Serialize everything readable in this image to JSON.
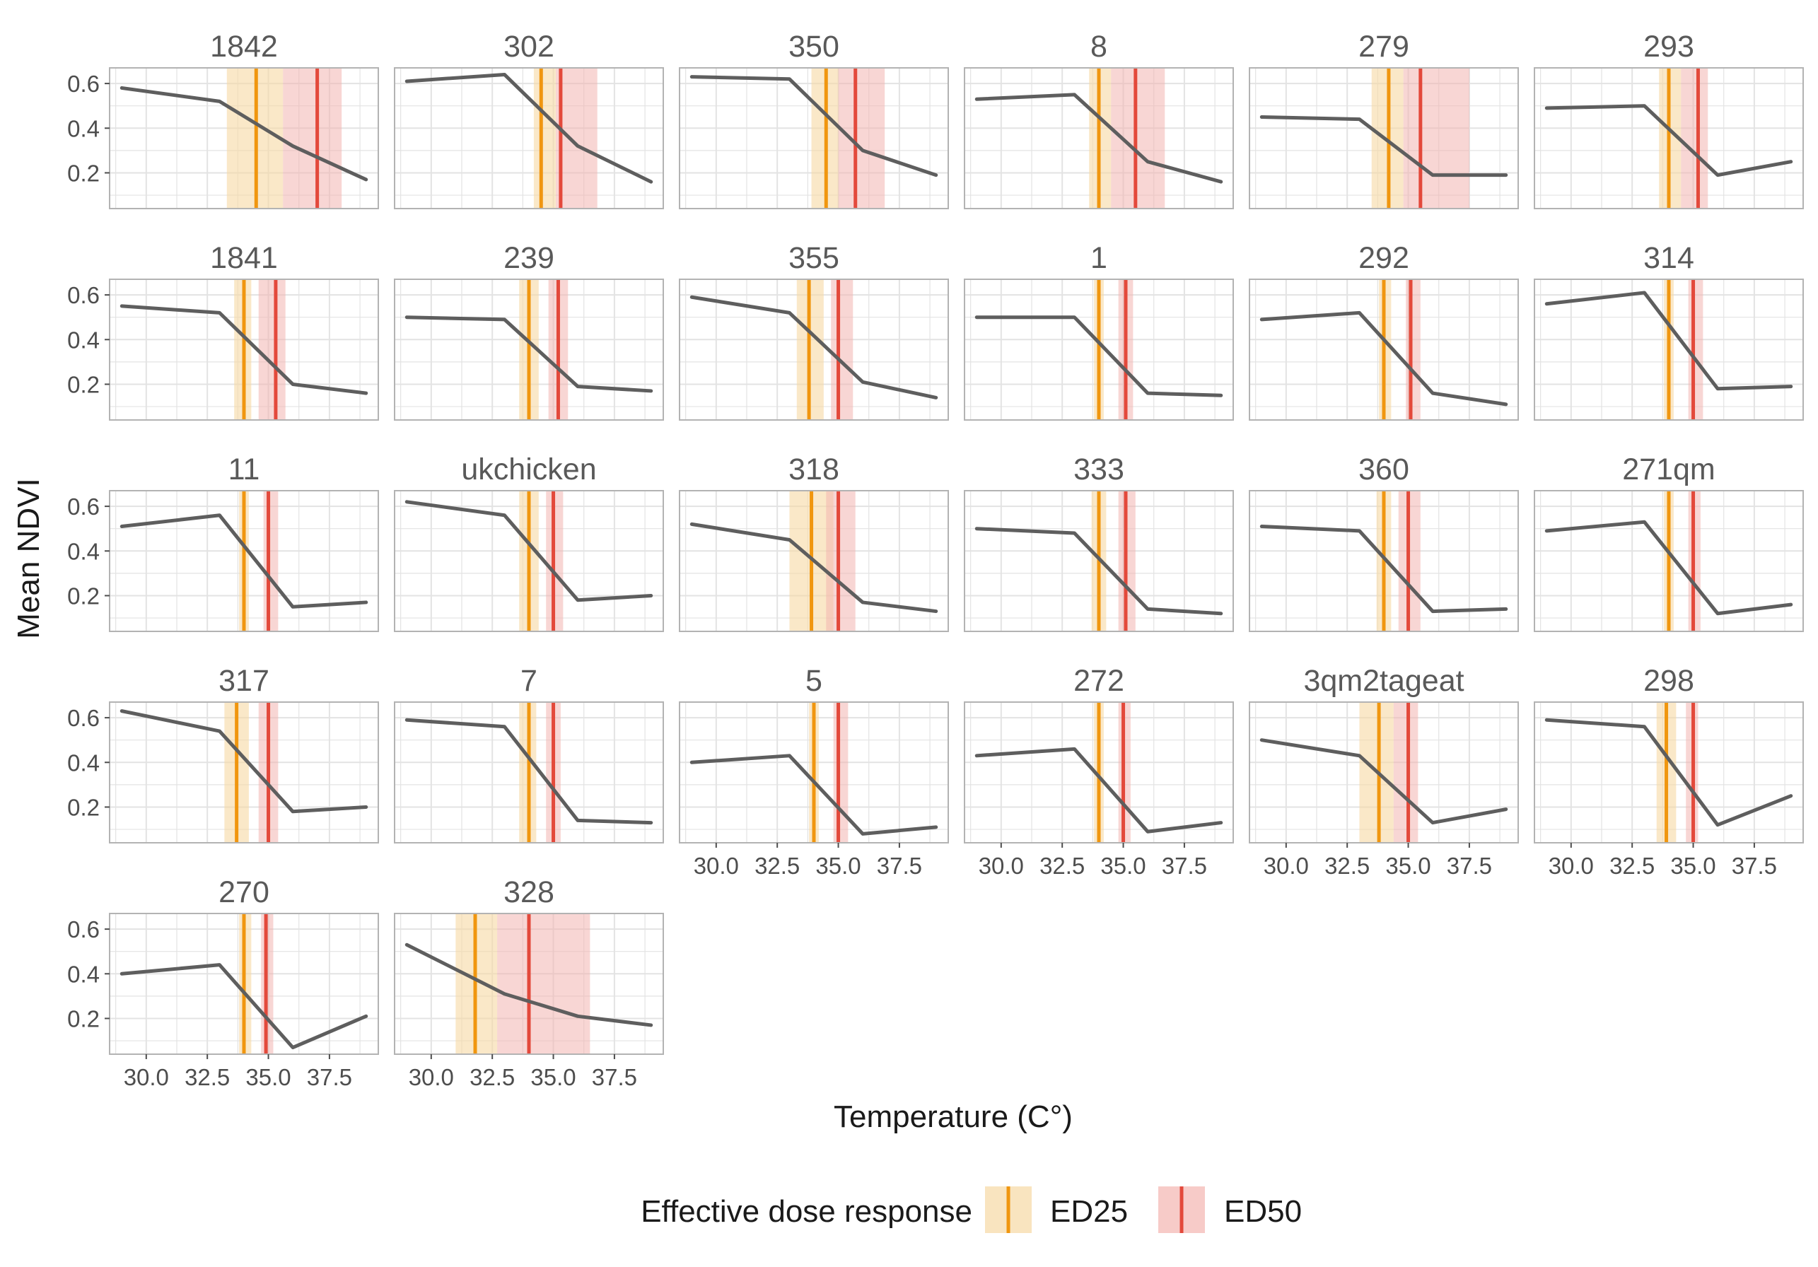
{
  "chart_data": {
    "type": "line",
    "layout": "faceted small multiples, 6 columns x 5 rows",
    "xlabel": "Temperature (C°)",
    "ylabel": "Mean NDVI",
    "xlim": [
      28.5,
      39.5
    ],
    "ylim": [
      0.04,
      0.67
    ],
    "x_ticks": [
      30.0,
      32.5,
      35.0,
      37.5
    ],
    "x_tick_labels": [
      "30.0",
      "32.5",
      "35.0",
      "37.5"
    ],
    "y_ticks": [
      0.2,
      0.4,
      0.6
    ],
    "y_tick_labels": [
      "0.2",
      "0.4",
      "0.6"
    ],
    "grid": true,
    "colors": {
      "line": "#5e5e5e",
      "ed25_line": "#f0960f",
      "ed25_band": "#f7d9a4",
      "ed50_line": "#e3493b",
      "ed50_band": "#f3b5b0",
      "panel_border": "#b3b3b3",
      "grid": "#e3e3e3",
      "strip_text": "#595959",
      "tick_text": "#4d4d4d"
    },
    "legend": {
      "position": "bottom",
      "title": "Effective dose response",
      "items": [
        {
          "label": "ED25",
          "color": "#f0960f"
        },
        {
          "label": "ED50",
          "color": "#e3493b"
        }
      ]
    },
    "x_points": [
      29,
      33,
      36,
      39
    ],
    "panels": [
      {
        "title": "1842",
        "y": [
          0.58,
          0.52,
          0.32,
          0.17
        ],
        "ed25": 34.5,
        "ed25_ci": [
          33.3,
          35.6
        ],
        "ed50": 37.0,
        "ed50_ci": [
          35.6,
          38.0
        ]
      },
      {
        "title": "302",
        "y": [
          0.61,
          0.64,
          0.32,
          0.16
        ],
        "ed25": 34.5,
        "ed25_ci": [
          34.2,
          35.1
        ],
        "ed50": 35.3,
        "ed50_ci": [
          35.1,
          36.8
        ]
      },
      {
        "title": "350",
        "y": [
          0.63,
          0.62,
          0.3,
          0.19
        ],
        "ed25": 34.5,
        "ed25_ci": [
          33.9,
          35.0
        ],
        "ed50": 35.7,
        "ed50_ci": [
          35.0,
          36.9
        ]
      },
      {
        "title": "8",
        "y": [
          0.53,
          0.55,
          0.25,
          0.16
        ],
        "ed25": 34.0,
        "ed25_ci": [
          33.6,
          34.5
        ],
        "ed50": 35.5,
        "ed50_ci": [
          34.5,
          36.7
        ]
      },
      {
        "title": "279",
        "y": [
          0.45,
          0.44,
          0.19,
          0.19
        ],
        "ed25": 34.2,
        "ed25_ci": [
          33.5,
          34.8
        ],
        "ed50": 35.5,
        "ed50_ci": [
          34.8,
          37.5
        ]
      },
      {
        "title": "293",
        "y": [
          0.49,
          0.5,
          0.19,
          0.25
        ],
        "ed25": 34.0,
        "ed25_ci": [
          33.6,
          34.5
        ],
        "ed50": 35.2,
        "ed50_ci": [
          34.5,
          35.6
        ]
      },
      {
        "title": "1841",
        "y": [
          0.55,
          0.52,
          0.2,
          0.16
        ],
        "ed25": 34.0,
        "ed25_ci": [
          33.6,
          34.3
        ],
        "ed50": 35.3,
        "ed50_ci": [
          34.6,
          35.7
        ]
      },
      {
        "title": "239",
        "y": [
          0.5,
          0.49,
          0.19,
          0.17
        ],
        "ed25": 34.0,
        "ed25_ci": [
          33.6,
          34.4
        ],
        "ed50": 35.2,
        "ed50_ci": [
          34.8,
          35.6
        ]
      },
      {
        "title": "355",
        "y": [
          0.59,
          0.52,
          0.21,
          0.14
        ],
        "ed25": 33.8,
        "ed25_ci": [
          33.3,
          34.4
        ],
        "ed50": 35.0,
        "ed50_ci": [
          34.7,
          35.6
        ]
      },
      {
        "title": "1",
        "y": [
          0.5,
          0.5,
          0.16,
          0.15
        ],
        "ed25": 34.0,
        "ed25_ci": [
          33.8,
          34.2
        ],
        "ed50": 35.1,
        "ed50_ci": [
          34.8,
          35.4
        ]
      },
      {
        "title": "292",
        "y": [
          0.49,
          0.52,
          0.16,
          0.11
        ],
        "ed25": 34.0,
        "ed25_ci": [
          33.8,
          34.3
        ],
        "ed50": 35.1,
        "ed50_ci": [
          34.9,
          35.5
        ]
      },
      {
        "title": "314",
        "y": [
          0.56,
          0.61,
          0.18,
          0.19
        ],
        "ed25": 34.0,
        "ed25_ci": [
          33.8,
          34.2
        ],
        "ed50": 35.0,
        "ed50_ci": [
          34.8,
          35.4
        ]
      },
      {
        "title": "11",
        "y": [
          0.51,
          0.56,
          0.15,
          0.17
        ],
        "ed25": 34.0,
        "ed25_ci": [
          33.8,
          34.2
        ],
        "ed50": 35.0,
        "ed50_ci": [
          34.8,
          35.4
        ]
      },
      {
        "title": "ukchicken",
        "y": [
          0.62,
          0.56,
          0.18,
          0.2
        ],
        "ed25": 34.0,
        "ed25_ci": [
          33.6,
          34.4
        ],
        "ed50": 35.0,
        "ed50_ci": [
          34.7,
          35.4
        ]
      },
      {
        "title": "318",
        "y": [
          0.52,
          0.45,
          0.17,
          0.13
        ],
        "ed25": 33.9,
        "ed25_ci": [
          33.0,
          34.8
        ],
        "ed50": 35.0,
        "ed50_ci": [
          34.5,
          35.7
        ]
      },
      {
        "title": "333",
        "y": [
          0.5,
          0.48,
          0.14,
          0.12
        ],
        "ed25": 34.0,
        "ed25_ci": [
          33.7,
          34.3
        ],
        "ed50": 35.1,
        "ed50_ci": [
          34.8,
          35.5
        ]
      },
      {
        "title": "360",
        "y": [
          0.51,
          0.49,
          0.13,
          0.14
        ],
        "ed25": 34.0,
        "ed25_ci": [
          33.7,
          34.3
        ],
        "ed50": 35.0,
        "ed50_ci": [
          34.6,
          35.5
        ]
      },
      {
        "title": "271qm",
        "y": [
          0.49,
          0.53,
          0.12,
          0.16
        ],
        "ed25": 34.0,
        "ed25_ci": [
          33.8,
          34.2
        ],
        "ed50": 35.0,
        "ed50_ci": [
          34.8,
          35.3
        ]
      },
      {
        "title": "317",
        "y": [
          0.63,
          0.54,
          0.18,
          0.2
        ],
        "ed25": 33.7,
        "ed25_ci": [
          33.2,
          34.2
        ],
        "ed50": 35.0,
        "ed50_ci": [
          34.6,
          35.4
        ]
      },
      {
        "title": "7",
        "y": [
          0.59,
          0.56,
          0.14,
          0.13
        ],
        "ed25": 34.0,
        "ed25_ci": [
          33.6,
          34.3
        ],
        "ed50": 35.0,
        "ed50_ci": [
          34.7,
          35.3
        ]
      },
      {
        "title": "5",
        "y": [
          0.4,
          0.43,
          0.08,
          0.11
        ],
        "ed25": 34.0,
        "ed25_ci": [
          33.8,
          34.2
        ],
        "ed50": 35.0,
        "ed50_ci": [
          34.8,
          35.4
        ]
      },
      {
        "title": "272",
        "y": [
          0.43,
          0.46,
          0.09,
          0.13
        ],
        "ed25": 34.0,
        "ed25_ci": [
          33.8,
          34.2
        ],
        "ed50": 35.0,
        "ed50_ci": [
          34.8,
          35.3
        ]
      },
      {
        "title": "3qm2tageat",
        "y": [
          0.5,
          0.43,
          0.13,
          0.19
        ],
        "ed25": 33.8,
        "ed25_ci": [
          33.0,
          34.4
        ],
        "ed50": 35.0,
        "ed50_ci": [
          34.4,
          35.4
        ]
      },
      {
        "title": "298",
        "y": [
          0.59,
          0.56,
          0.12,
          0.25
        ],
        "ed25": 33.9,
        "ed25_ci": [
          33.5,
          34.3
        ],
        "ed50": 35.0,
        "ed50_ci": [
          34.7,
          35.2
        ]
      },
      {
        "title": "270",
        "y": [
          0.4,
          0.44,
          0.07,
          0.21
        ],
        "ed25": 34.0,
        "ed25_ci": [
          33.8,
          34.3
        ],
        "ed50": 34.9,
        "ed50_ci": [
          34.7,
          35.2
        ]
      },
      {
        "title": "328",
        "y": [
          0.53,
          0.31,
          0.21,
          0.17
        ],
        "ed25": 31.8,
        "ed25_ci": [
          31.0,
          32.7
        ],
        "ed50": 34.0,
        "ed50_ci": [
          32.7,
          36.5
        ]
      }
    ]
  }
}
